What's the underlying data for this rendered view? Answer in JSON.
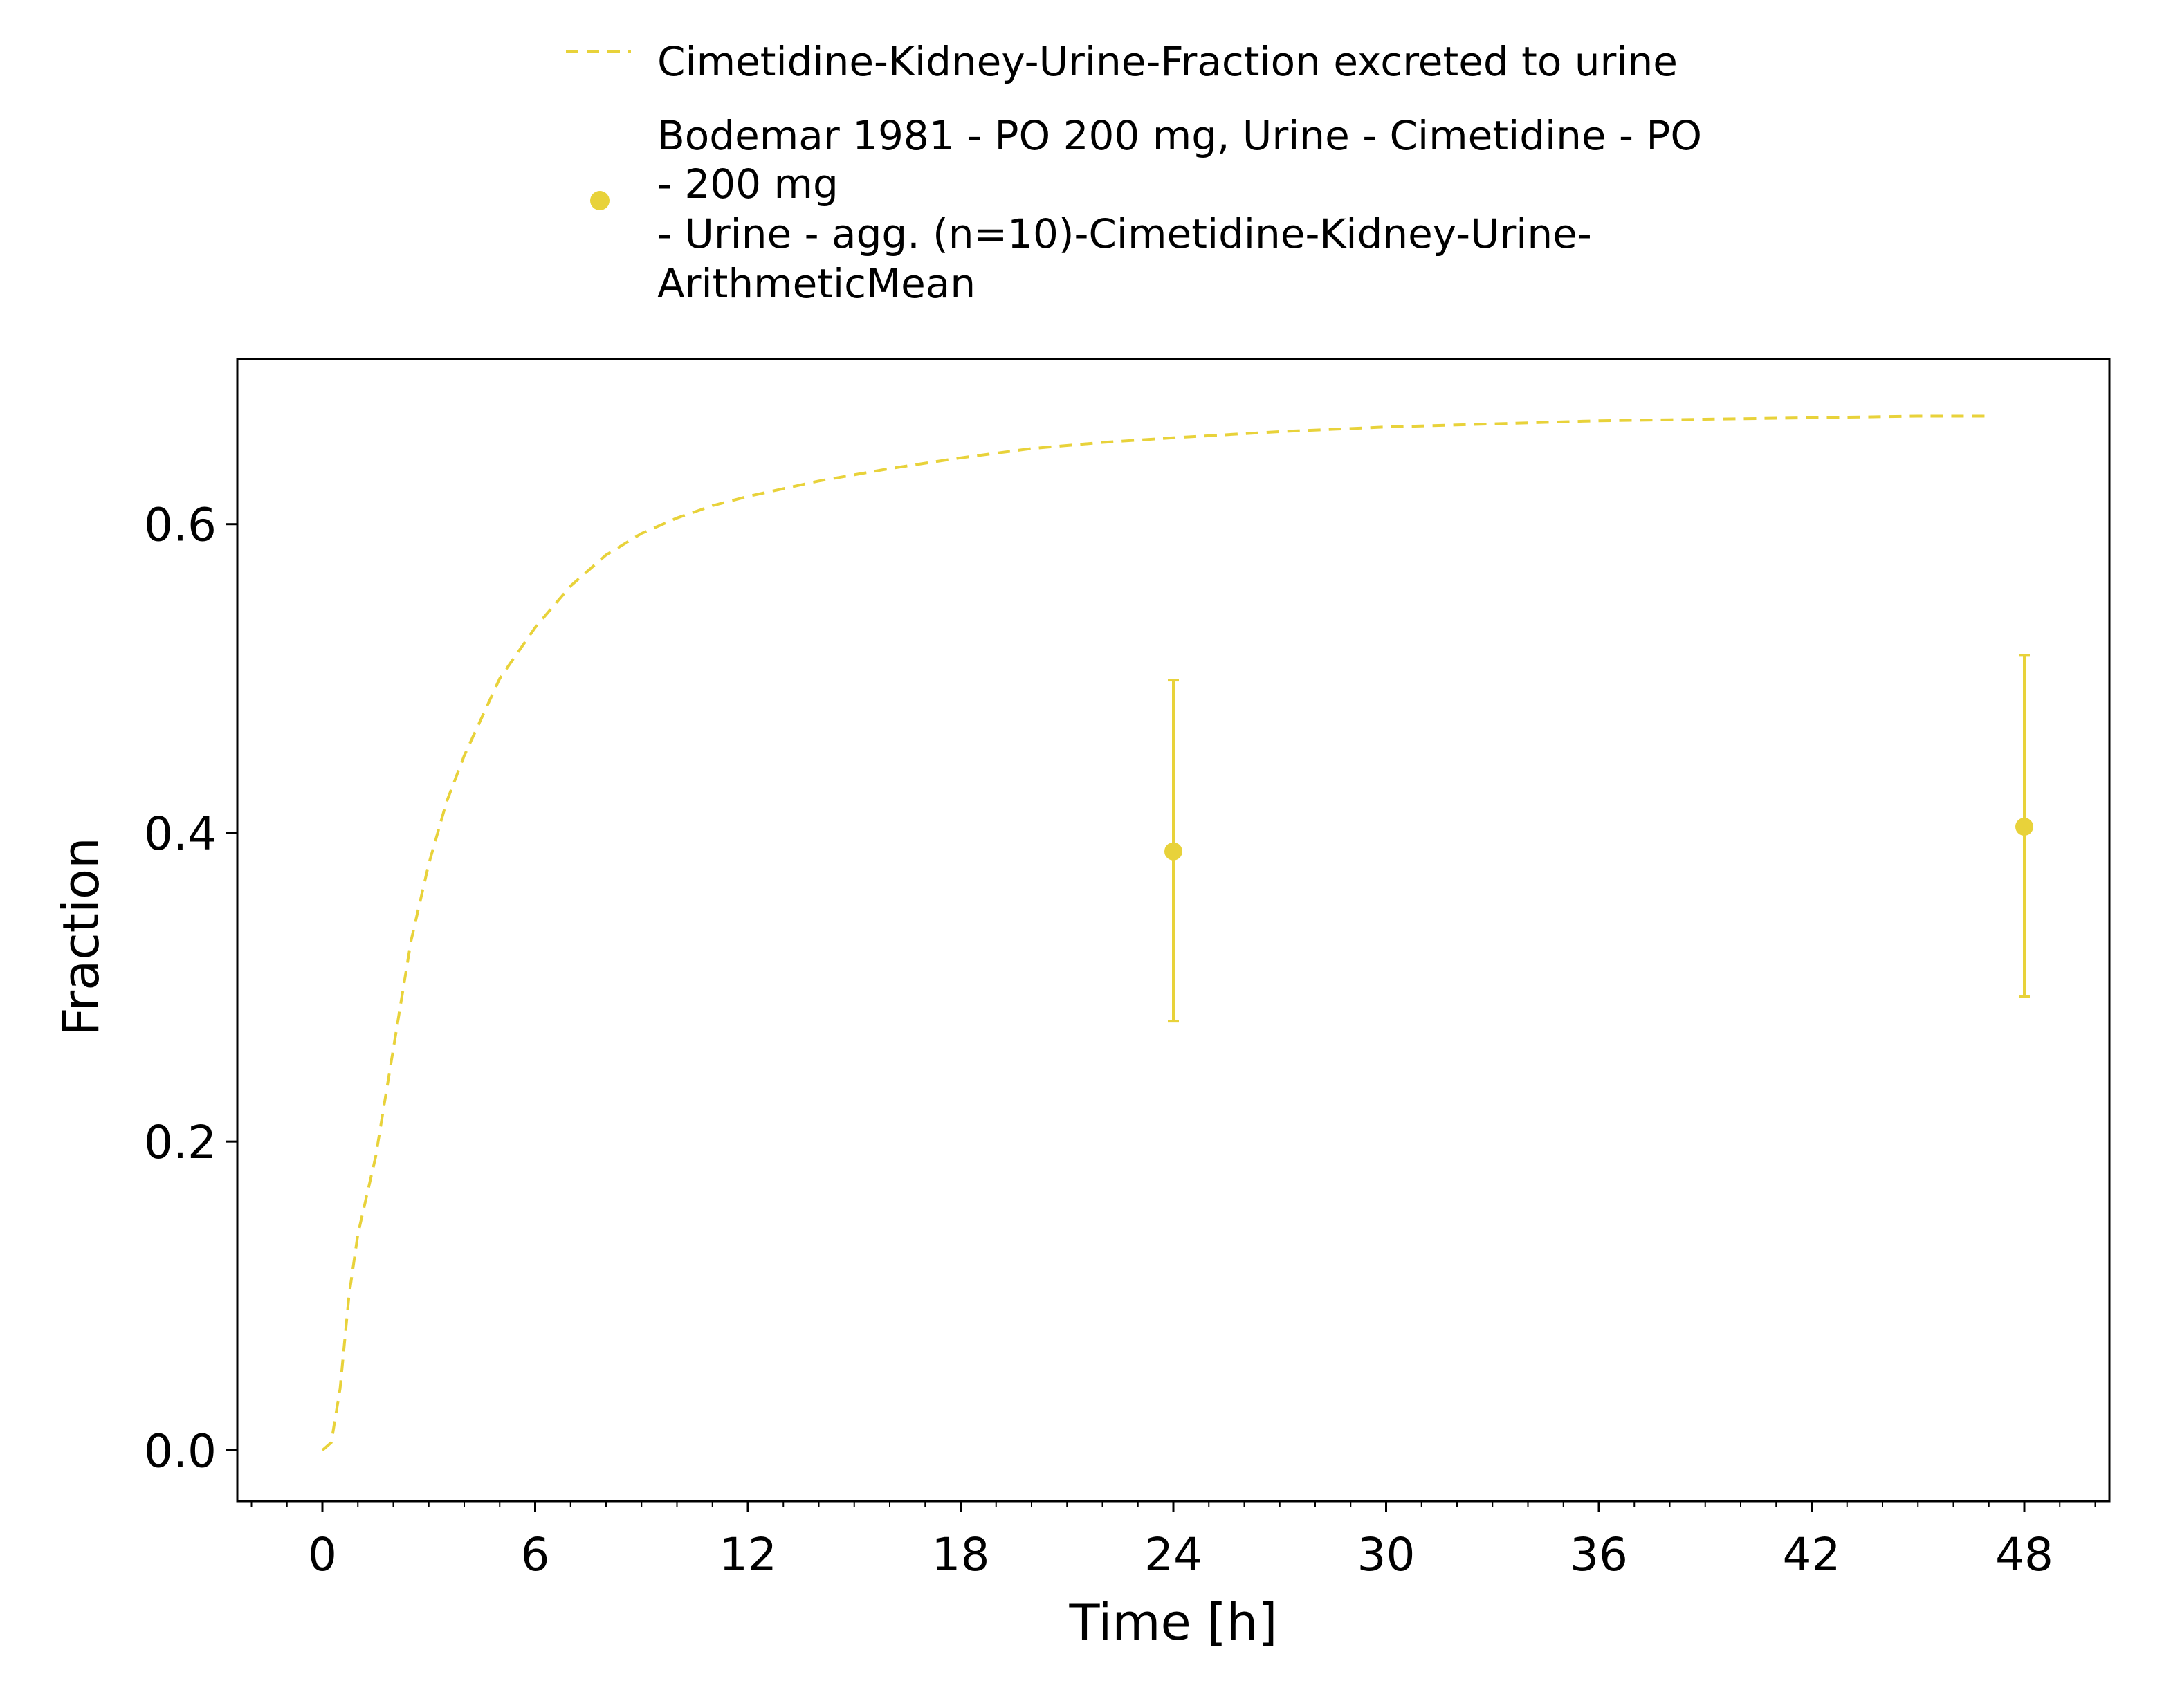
{
  "colors": {
    "series": "#E8D23A",
    "axis": "#000000",
    "background": "#ffffff"
  },
  "chart_data": {
    "type": "line",
    "title": "",
    "xlabel": "Time [h]",
    "ylabel": "Fraction",
    "xlim": [
      -2.4,
      50.4
    ],
    "ylim": [
      -0.033,
      0.707
    ],
    "xticks": [
      0,
      6,
      12,
      18,
      24,
      30,
      36,
      42,
      48
    ],
    "xtick_labels": [
      "0",
      "6",
      "12",
      "18",
      "24",
      "30",
      "36",
      "42",
      "48"
    ],
    "yticks": [
      0.0,
      0.2,
      0.4,
      0.6
    ],
    "ytick_labels": [
      "0.0",
      "0.2",
      "0.4",
      "0.6"
    ],
    "grid": false,
    "legend_position": "top",
    "series": [
      {
        "name": "Cimetidine-Kidney-Urine-Fraction excreted to urine",
        "style": "dashed-line",
        "x": [
          0,
          0.25,
          0.5,
          0.75,
          1,
          1.5,
          2,
          2.5,
          3,
          3.5,
          4,
          5,
          6,
          7,
          8,
          9,
          10,
          11,
          12,
          14,
          16,
          18,
          20,
          22,
          24,
          27,
          30,
          33,
          36,
          39,
          42,
          45,
          47
        ],
        "y": [
          0.0,
          0.005,
          0.04,
          0.1,
          0.14,
          0.19,
          0.26,
          0.33,
          0.38,
          0.42,
          0.45,
          0.5,
          0.533,
          0.56,
          0.58,
          0.594,
          0.604,
          0.612,
          0.618,
          0.628,
          0.636,
          0.643,
          0.649,
          0.653,
          0.656,
          0.66,
          0.663,
          0.665,
          0.667,
          0.668,
          0.669,
          0.67,
          0.67
        ]
      },
      {
        "name": "Bodemar 1981 - PO 200 mg, Urine - Cimetidine - PO - 200 mg - Urine - agg. (n=10)-Cimetidine-Kidney-Urine-ArithmeticMean",
        "style": "points-errorbars",
        "x": [
          24,
          48
        ],
        "y": [
          0.388,
          0.404
        ],
        "error_low": [
          0.278,
          0.294
        ],
        "error_high": [
          0.499,
          0.515
        ]
      }
    ],
    "legend": {
      "entries": [
        {
          "lines": [
            "Cimetidine-Kidney-Urine-Fraction excreted to urine"
          ]
        },
        {
          "lines": [
            "Bodemar 1981 - PO 200 mg, Urine - Cimetidine - PO",
            "- 200 mg",
            "- Urine - agg. (n=10)-Cimetidine-Kidney-Urine-",
            "ArithmeticMean"
          ]
        }
      ]
    }
  }
}
